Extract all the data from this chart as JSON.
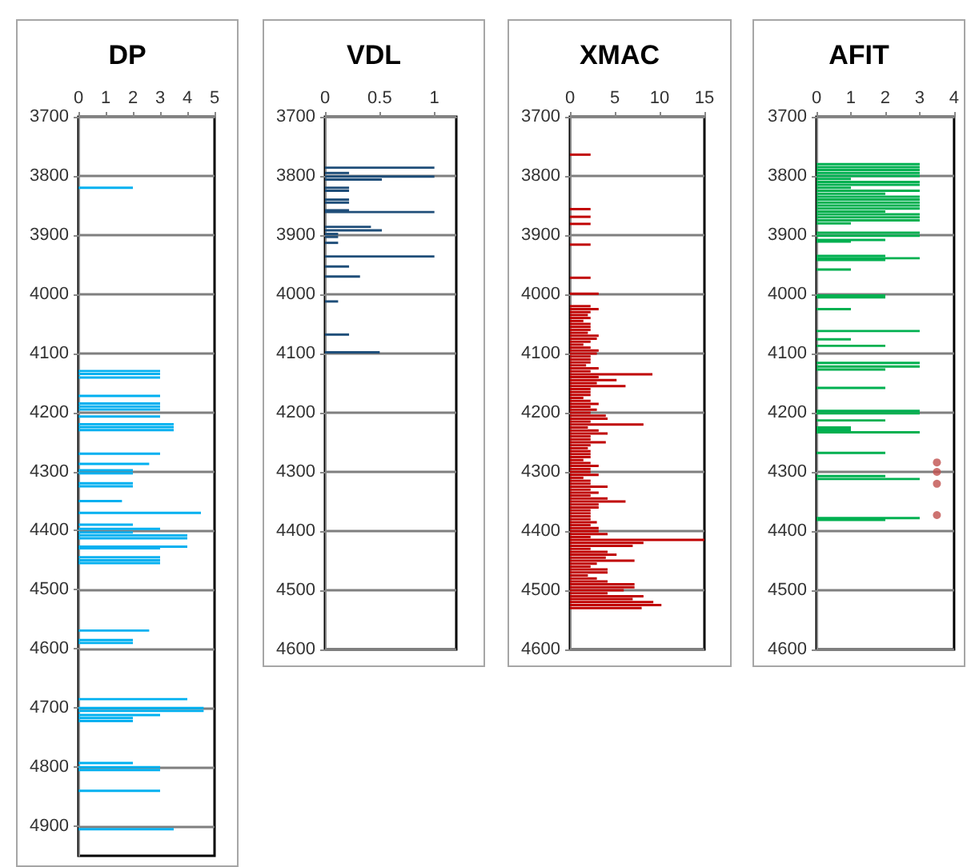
{
  "chart_data": [
    {
      "type": "bar",
      "orientation": "horizontal",
      "title": "DP",
      "xlim": [
        0,
        5
      ],
      "xticks": [
        0,
        1,
        2,
        3,
        4,
        5
      ],
      "ylim": [
        4950,
        3700
      ],
      "yticks": [
        3700,
        3800,
        3900,
        4000,
        4100,
        4200,
        4300,
        4400,
        4500,
        4600,
        4700,
        4800,
        4900
      ],
      "grid": "y",
      "series": [
        {
          "color": "#00b0f0",
          "x": [
            3820,
            4130,
            4135,
            4141,
            4172,
            4185,
            4190,
            4195,
            4207,
            4220,
            4225,
            4230,
            4270,
            4287,
            4298,
            4303,
            4320,
            4325,
            4350,
            4370,
            4390,
            4397,
            4403,
            4408,
            4413,
            4427,
            4430,
            4445,
            4450,
            4455,
            4569,
            4585,
            4590,
            4685,
            4700,
            4705,
            4712,
            4717,
            4722,
            4793,
            4800,
            4805,
            4840,
            4905
          ],
          "values": [
            2,
            3,
            3,
            3,
            3,
            3,
            3,
            3,
            3,
            3.5,
            3.5,
            3.5,
            3,
            2.6,
            2,
            2,
            2,
            2,
            1.6,
            4.5,
            2,
            3,
            2,
            4,
            4,
            4,
            3,
            3,
            3,
            3,
            2.6,
            2,
            2,
            4,
            4.6,
            4.6,
            3,
            2,
            2,
            2,
            3,
            3,
            3,
            3.5
          ]
        }
      ]
    },
    {
      "type": "bar",
      "orientation": "horizontal",
      "title": "VDL",
      "xlim": [
        0,
        1.2
      ],
      "xticks": [
        0,
        0.5,
        1
      ],
      "ylim": [
        4600,
        3700
      ],
      "yticks": [
        3700,
        3800,
        3900,
        4000,
        4100,
        4200,
        4300,
        4400,
        4500,
        4600
      ],
      "grid": "y",
      "series": [
        {
          "color": "#1f4e79",
          "x": [
            3786,
            3795,
            3801,
            3806,
            3820,
            3825,
            3840,
            3845,
            3858,
            3861,
            3886,
            3892,
            3898,
            3903,
            3913,
            3936,
            3953,
            3970,
            4012,
            4068,
            4098
          ],
          "values": [
            1,
            0.22,
            1,
            0.52,
            0.22,
            0.22,
            0.22,
            0.22,
            0.22,
            1,
            0.42,
            0.52,
            0.12,
            0.12,
            0.12,
            1,
            0.22,
            0.32,
            0.12,
            0.22,
            0.5
          ]
        }
      ]
    },
    {
      "type": "bar",
      "orientation": "horizontal",
      "title": "XMAC",
      "xlim": [
        0,
        15
      ],
      "xticks": [
        0,
        5,
        10,
        15
      ],
      "ylim": [
        4600,
        3700
      ],
      "yticks": [
        3700,
        3800,
        3900,
        4000,
        4100,
        4200,
        4300,
        4400,
        4500,
        4600
      ],
      "grid": "y",
      "series": [
        {
          "color": "#c00000",
          "x": [
            3764,
            3856,
            3869,
            3881,
            3916,
            3972,
            3999,
            4020,
            4025,
            4030,
            4035,
            4040,
            4045,
            4050,
            4055,
            4060,
            4065,
            4070,
            4075,
            4080,
            4085,
            4090,
            4095,
            4100,
            4105,
            4110,
            4115,
            4120,
            4125,
            4130,
            4135,
            4140,
            4145,
            4150,
            4155,
            4160,
            4165,
            4170,
            4175,
            4180,
            4185,
            4190,
            4195,
            4200,
            4205,
            4210,
            4215,
            4220,
            4225,
            4230,
            4235,
            4240,
            4245,
            4250,
            4255,
            4260,
            4265,
            4270,
            4275,
            4280,
            4285,
            4290,
            4295,
            4300,
            4305,
            4310,
            4315,
            4320,
            4325,
            4330,
            4335,
            4340,
            4345,
            4350,
            4355,
            4360,
            4365,
            4370,
            4375,
            4380,
            4385,
            4390,
            4395,
            4400,
            4405,
            4410,
            4415,
            4420,
            4425,
            4430,
            4435,
            4440,
            4445,
            4450,
            4455,
            4460,
            4465,
            4470,
            4475,
            4480,
            4485,
            4490,
            4495,
            4500,
            4505,
            4510,
            4515,
            4520,
            4525,
            4530
          ],
          "values": [
            2.3,
            2.3,
            2.3,
            2.3,
            2.3,
            2.3,
            3.2,
            2.3,
            3.2,
            2.3,
            2,
            2.3,
            1.5,
            2.3,
            2.3,
            2.3,
            2,
            3.2,
            3,
            2.3,
            1.5,
            2.3,
            3.2,
            3,
            2.3,
            2.3,
            2.3,
            1.8,
            3.2,
            2.3,
            9.2,
            3.2,
            5.2,
            3,
            6.2,
            2.3,
            2.3,
            2.3,
            1.5,
            2.3,
            3.2,
            2.3,
            3,
            2.3,
            4,
            4.2,
            2.3,
            8.2,
            2,
            3.2,
            4.2,
            2.3,
            2.3,
            4,
            2.3,
            2,
            2.3,
            2.3,
            2.3,
            1.5,
            2.3,
            3.2,
            2.3,
            2.3,
            3.2,
            1.5,
            2.3,
            2.3,
            4.2,
            2.3,
            3.2,
            2.3,
            4.2,
            6.2,
            3.2,
            3.2,
            2.3,
            2.3,
            2.3,
            2.3,
            3,
            2.3,
            3.2,
            3.2,
            4.2,
            2.3,
            15,
            8.2,
            7,
            2.3,
            4.2,
            5.2,
            4,
            7.2,
            3,
            2.3,
            4.2,
            4.2,
            2,
            3,
            4.2,
            7.2,
            7.2,
            6,
            4.2,
            8.2,
            7,
            9.3,
            10.2,
            8
          ]
        }
      ]
    },
    {
      "type": "bar",
      "orientation": "horizontal",
      "title": "AFIT",
      "xlim": [
        0,
        4
      ],
      "xticks": [
        0,
        1,
        2,
        3,
        4
      ],
      "ylim": [
        4600,
        3700
      ],
      "yticks": [
        3700,
        3800,
        3900,
        4000,
        4100,
        4200,
        4300,
        4400,
        4500,
        4600
      ],
      "grid": "y",
      "marker": "circle",
      "series": [
        {
          "color": "#00b050",
          "x": [
            3780,
            3785,
            3790,
            3795,
            3800,
            3805,
            3810,
            3815,
            3820,
            3825,
            3830,
            3835,
            3840,
            3845,
            3850,
            3855,
            3860,
            3865,
            3870,
            3875,
            3880,
            3896,
            3901,
            3908,
            3911,
            3935,
            3939,
            3942,
            3958,
            4002,
            4005,
            4025,
            4062,
            4076,
            4087,
            4116,
            4122,
            4127,
            4158,
            4197,
            4201,
            4213,
            4225,
            4229,
            4233,
            4268,
            4307,
            4312,
            4378,
            4381
          ],
          "values": [
            3,
            3,
            3,
            3,
            3,
            1,
            3,
            3,
            1,
            3,
            2,
            3,
            3,
            3,
            3,
            3,
            2,
            3,
            3,
            3,
            1,
            3,
            3,
            2,
            1,
            2,
            3,
            2,
            1,
            2,
            2,
            1,
            3,
            1,
            2,
            3,
            3,
            2,
            2,
            3,
            3,
            2,
            1,
            1,
            3,
            2,
            2,
            3,
            3,
            2
          ]
        },
        {
          "type": "scatter",
          "color": "#c0504d",
          "x": [
            4284,
            4300,
            4320,
            4373
          ],
          "values": [
            3.5,
            3.5,
            3.5,
            3.5
          ]
        }
      ]
    }
  ]
}
